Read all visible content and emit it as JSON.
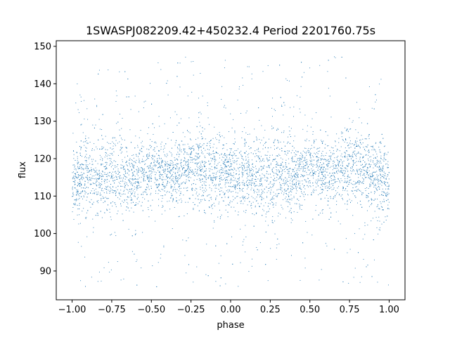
{
  "chart_data": {
    "type": "scatter",
    "title": "1SWASPJ082209.42+450232.4 Period 2201760.75s",
    "xlabel": "phase",
    "ylabel": "flux",
    "xlim": [
      -1.1,
      1.1
    ],
    "ylim": [
      82.3,
      151.5
    ],
    "x_ticks": [
      -1.0,
      -0.75,
      -0.5,
      -0.25,
      0.0,
      0.25,
      0.5,
      0.75,
      1.0
    ],
    "x_tick_labels": [
      "−1.00",
      "−0.75",
      "−0.50",
      "−0.25",
      "0.00",
      "0.25",
      "0.50",
      "0.75",
      "1.00"
    ],
    "y_ticks": [
      90,
      100,
      110,
      120,
      130,
      140,
      150
    ],
    "y_tick_labels": [
      "90",
      "100",
      "110",
      "120",
      "130",
      "140",
      "150"
    ],
    "grid": false,
    "legend": "none",
    "marker_color": "#1f77b4",
    "series": [
      {
        "x_range": [
          -1.0,
          1.0
        ],
        "description_values": {
          "phase": [
            -1.0,
            -0.9,
            -0.8,
            -0.7,
            -0.6,
            -0.5,
            -0.4,
            -0.3,
            -0.2,
            -0.1,
            0.0,
            0.1,
            0.2,
            0.3,
            0.4,
            0.5,
            0.6,
            0.7,
            0.8,
            0.9,
            1.0
          ],
          "flux_median": [
            114,
            116,
            115,
            116,
            115,
            117,
            116,
            117,
            118,
            116,
            115,
            116,
            115,
            116,
            115,
            117,
            116,
            117,
            118,
            116,
            114
          ],
          "flux_spread": [
            6,
            7,
            7,
            7,
            6,
            6,
            6,
            6,
            7,
            7,
            6,
            7,
            7,
            7,
            6,
            6,
            6,
            6,
            7,
            7,
            6
          ]
        }
      }
    ]
  }
}
